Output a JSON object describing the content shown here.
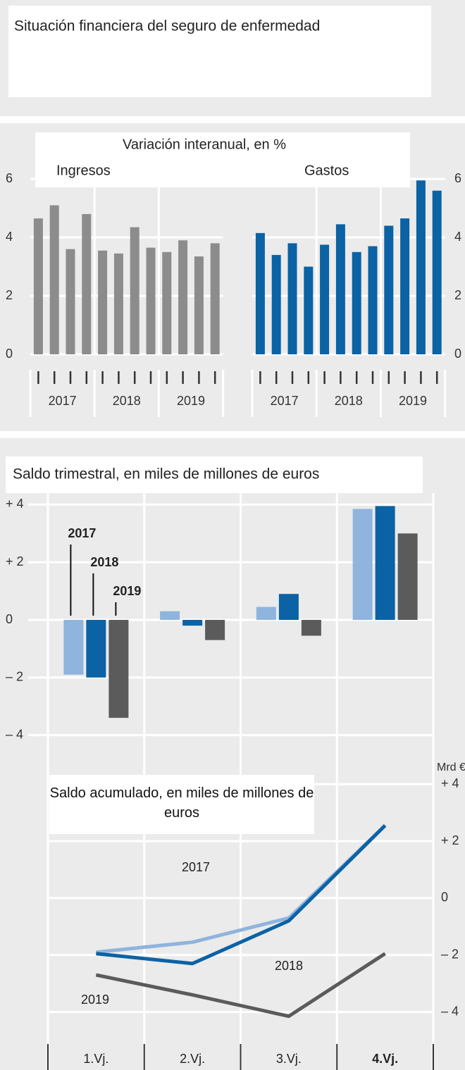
{
  "header": {
    "title": "Situación financiera del seguro de enfermedad"
  },
  "section_title": "Variación interanual, en %",
  "chart_data": [
    {
      "type": "bar",
      "title": "Ingresos",
      "categories": [
        null,
        null,
        null,
        null,
        null,
        null,
        null,
        null,
        null,
        null,
        null,
        null
      ],
      "groups": [
        "2017",
        "2018",
        "2019"
      ],
      "values": [
        4.65,
        5.1,
        3.6,
        4.8,
        3.55,
        3.45,
        4.35,
        3.65,
        3.5,
        3.9,
        3.35,
        3.8
      ],
      "color": "#8c8c8c",
      "ylim": [
        0,
        7.4
      ],
      "yticks": [
        0,
        2,
        4,
        6
      ],
      "grid": true,
      "axis_side": "left"
    },
    {
      "type": "bar",
      "title": "Gastos",
      "categories": [
        null,
        null,
        null,
        null,
        null,
        null,
        null,
        null,
        null,
        null,
        null,
        null
      ],
      "groups": [
        "2017",
        "2018",
        "2019"
      ],
      "values": [
        4.15,
        3.4,
        3.8,
        3.0,
        3.75,
        4.45,
        3.5,
        3.7,
        4.4,
        4.65,
        5.95,
        5.6
      ],
      "color": "#0b62a4",
      "ylim": [
        0,
        7.4
      ],
      "yticks": [
        0,
        2,
        4,
        6
      ],
      "grid": true,
      "axis_side": "right"
    },
    {
      "type": "grouped_bar",
      "title": "Saldo trimestral, en miles de millones de euros",
      "series": [
        {
          "name": "2017",
          "color": "#8fb4dd",
          "values": [
            -1.9,
            0.3,
            0.45,
            3.85
          ]
        },
        {
          "name": "2018",
          "color": "#0b62a4",
          "values": [
            -2.0,
            -0.2,
            0.9,
            3.95
          ]
        },
        {
          "name": "2019",
          "color": "#5b5b5b",
          "values": [
            -3.4,
            -0.7,
            -0.55,
            3.0
          ]
        }
      ],
      "ylim": [
        -4.4,
        4.4
      ],
      "yticks": [
        {
          "value": 4,
          "label": "+ 4"
        },
        {
          "value": 2,
          "label": "+ 2"
        },
        0,
        {
          "value": -2,
          "label": "– 2"
        },
        {
          "value": -4,
          "label": "– 4"
        }
      ],
      "grid": true
    },
    {
      "type": "line",
      "title": "Saldo acumulado, en miles de millones de euros",
      "y_label": "Mrd €",
      "categories": [
        "1.Vj.",
        "2.Vj.",
        "3.Vj.",
        "4.Vj."
      ],
      "series": [
        {
          "name": "2017",
          "color": "#8fb4dd",
          "values": [
            -1.9,
            -1.55,
            -0.7,
            2.55
          ]
        },
        {
          "name": "2018",
          "color": "#0b62a4",
          "values": [
            -1.95,
            -2.3,
            -0.8,
            2.55
          ]
        },
        {
          "name": "2019",
          "color": "#5b5b5b",
          "values": [
            -2.7,
            -3.4,
            -4.15,
            -1.95
          ]
        }
      ],
      "ylim": [
        -4.9,
        4.5
      ],
      "yticks": [
        {
          "value": 4,
          "label": "+ 4"
        },
        {
          "value": 2,
          "label": "+ 2"
        },
        0,
        {
          "value": -2,
          "label": "– 2"
        },
        {
          "value": -4,
          "label": "– 4"
        }
      ],
      "grid": true
    }
  ]
}
